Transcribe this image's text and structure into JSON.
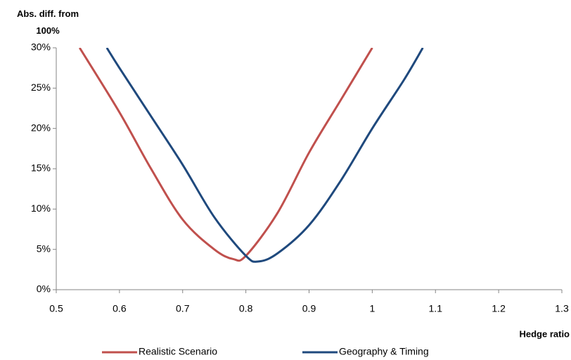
{
  "chart_data": {
    "type": "line",
    "y_label": "Abs. diff. from 100%",
    "x_label": "Hedge ratio",
    "xlim": [
      0.5,
      1.3
    ],
    "xticks": [
      0.5,
      0.6,
      0.7,
      0.8,
      0.9,
      1,
      1.1,
      1.2,
      1.3
    ],
    "ylim": [
      0,
      30
    ],
    "yticks": [
      {
        "value": 0,
        "label": "0%"
      },
      {
        "value": 5,
        "label": "5%"
      },
      {
        "value": 10,
        "label": "10%"
      },
      {
        "value": 15,
        "label": "15%"
      },
      {
        "value": 20,
        "label": "20%"
      },
      {
        "value": 25,
        "label": "25%"
      },
      {
        "value": 30,
        "label": "30%"
      }
    ],
    "grid": false,
    "series": [
      {
        "name": "Realistic Scenario",
        "color": "#c0504d",
        "x": [
          0.537,
          0.6,
          0.65,
          0.7,
          0.75,
          0.78,
          0.8,
          0.85,
          0.9,
          0.95,
          1.0
        ],
        "values": [
          30,
          22,
          15,
          8.7,
          5,
          3.8,
          4.2,
          9.5,
          17,
          23.5,
          30
        ]
      },
      {
        "name": "Geography & Timing",
        "color": "#1f497d",
        "x": [
          0.58,
          0.6,
          0.65,
          0.7,
          0.75,
          0.8,
          0.82,
          0.85,
          0.9,
          0.95,
          1.0,
          1.05,
          1.08
        ],
        "values": [
          30,
          27.5,
          21.5,
          15.5,
          9,
          4.2,
          3.5,
          4.5,
          8,
          13.5,
          20,
          26,
          30
        ]
      }
    ]
  }
}
